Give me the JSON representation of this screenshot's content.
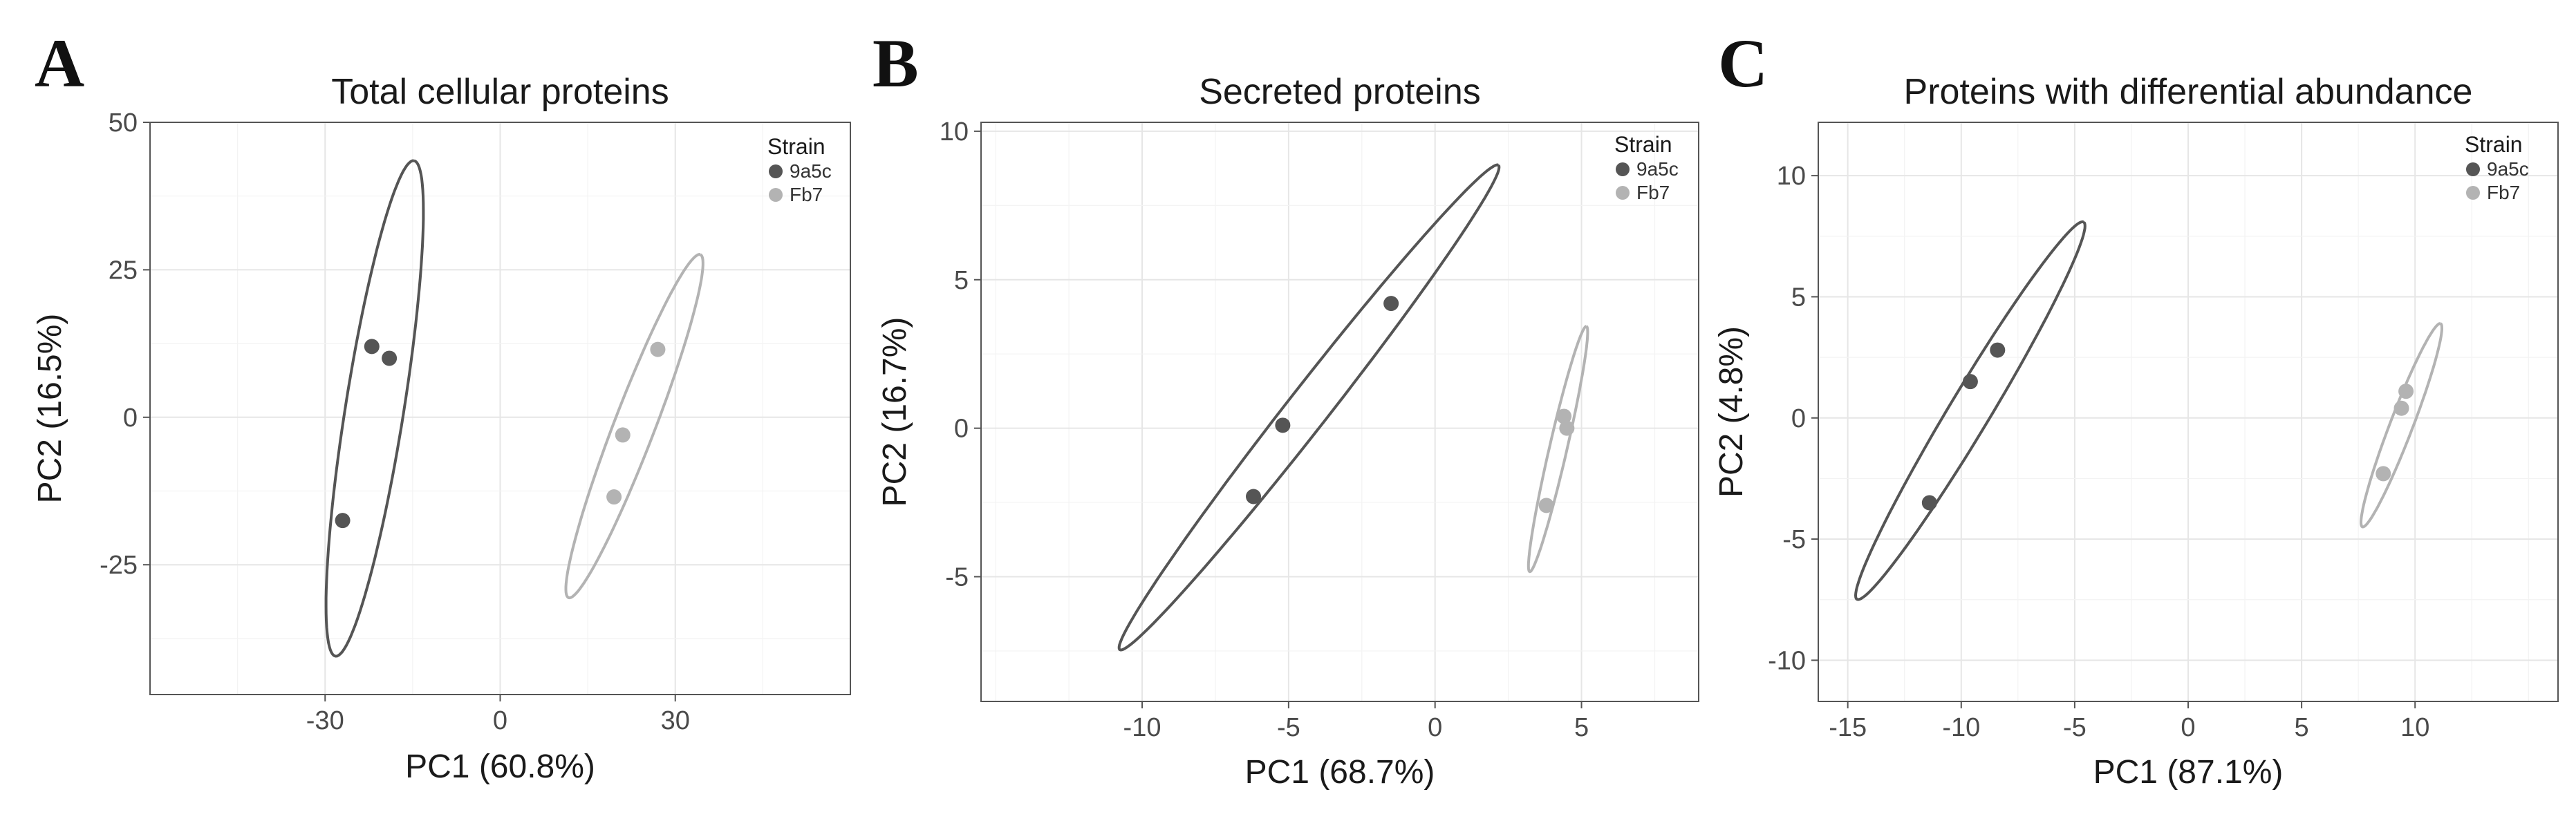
{
  "figure": {
    "panels": [
      "A",
      "B",
      "C"
    ]
  },
  "colors": {
    "9a5c": "#555555",
    "Fb7": "#b3b3b3"
  },
  "chart_data": [
    {
      "panel": "A",
      "type": "scatter",
      "title": "Total cellular proteins",
      "xlabel": "PC1 (60.8%)",
      "ylabel": "PC2 (16.5%)",
      "xlim": [
        -60,
        60
      ],
      "ylim": [
        -47,
        50
      ],
      "xticks": [
        -30,
        0,
        30
      ],
      "yticks": [
        -25,
        0,
        25,
        50
      ],
      "grid": true,
      "legend": {
        "title": "Strain",
        "position": "top-right"
      },
      "series": [
        {
          "name": "9a5c",
          "points": [
            [
              -22,
              12
            ],
            [
              -19,
              10
            ],
            [
              -27,
              -17.5
            ]
          ],
          "ellipse": {
            "cx": -21.5,
            "cy": 1.5,
            "rx": 43,
            "ry": 5,
            "angle_deg": 81
          }
        },
        {
          "name": "Fb7",
          "points": [
            [
              27,
              11.5
            ],
            [
              21,
              -3
            ],
            [
              19.5,
              -13.5
            ]
          ],
          "ellipse": {
            "cx": 23,
            "cy": -1.5,
            "rx": 31.5,
            "ry": 3.5,
            "angle_deg": 69
          }
        }
      ]
    },
    {
      "panel": "B",
      "type": "scatter",
      "title": "Secreted proteins",
      "xlabel": "PC1 (68.7%)",
      "ylabel": "PC2 (16.7%)",
      "xlim": [
        -15.5,
        9
      ],
      "ylim": [
        -9.2,
        10.3
      ],
      "xticks": [
        -10,
        -5,
        0,
        5
      ],
      "yticks": [
        -5,
        0,
        5,
        10
      ],
      "grid": true,
      "legend": {
        "title": "Strain",
        "position": "top-right"
      },
      "series": [
        {
          "name": "9a5c",
          "points": [
            [
              -6.2,
              -2.3
            ],
            [
              -5.2,
              0.1
            ],
            [
              -1.5,
              4.2
            ]
          ],
          "ellipse": {
            "cx": -4.3,
            "cy": 0.7,
            "rx": 10.5,
            "ry": 0.7,
            "angle_deg": 52
          }
        },
        {
          "name": "Fb7",
          "points": [
            [
              4.4,
              0.4
            ],
            [
              4.5,
              0.0
            ],
            [
              3.8,
              -2.6
            ]
          ],
          "ellipse": {
            "cx": 4.2,
            "cy": -0.7,
            "rx": 4.3,
            "ry": 0.3,
            "angle_deg": 77
          }
        }
      ]
    },
    {
      "panel": "C",
      "type": "scatter",
      "title": "Proteins with differential abundance",
      "xlabel": "PC1 (87.1%)",
      "ylabel": "PC2 (4.8%)",
      "xlim": [
        -16.3,
        16.3
      ],
      "ylim": [
        -11.7,
        12.2
      ],
      "xticks": [
        -15,
        -10,
        -5,
        0,
        5,
        10
      ],
      "yticks": [
        -10,
        -5,
        0,
        5,
        10
      ],
      "grid": true,
      "legend": {
        "title": "Strain",
        "position": "top-right"
      },
      "series": [
        {
          "name": "9a5c",
          "points": [
            [
              -11.4,
              -3.5
            ],
            [
              -9.6,
              1.5
            ],
            [
              -8.4,
              2.8
            ]
          ],
          "ellipse": {
            "cx": -9.6,
            "cy": 0.3,
            "rx": 9.7,
            "ry": 0.9,
            "angle_deg": 59
          }
        },
        {
          "name": "Fb7",
          "points": [
            [
              9.6,
              1.1
            ],
            [
              9.4,
              0.4
            ],
            [
              8.6,
              -2.3
            ]
          ],
          "ellipse": {
            "cx": 9.4,
            "cy": -0.3,
            "rx": 4.8,
            "ry": 0.5,
            "angle_deg": 69
          }
        }
      ]
    }
  ]
}
